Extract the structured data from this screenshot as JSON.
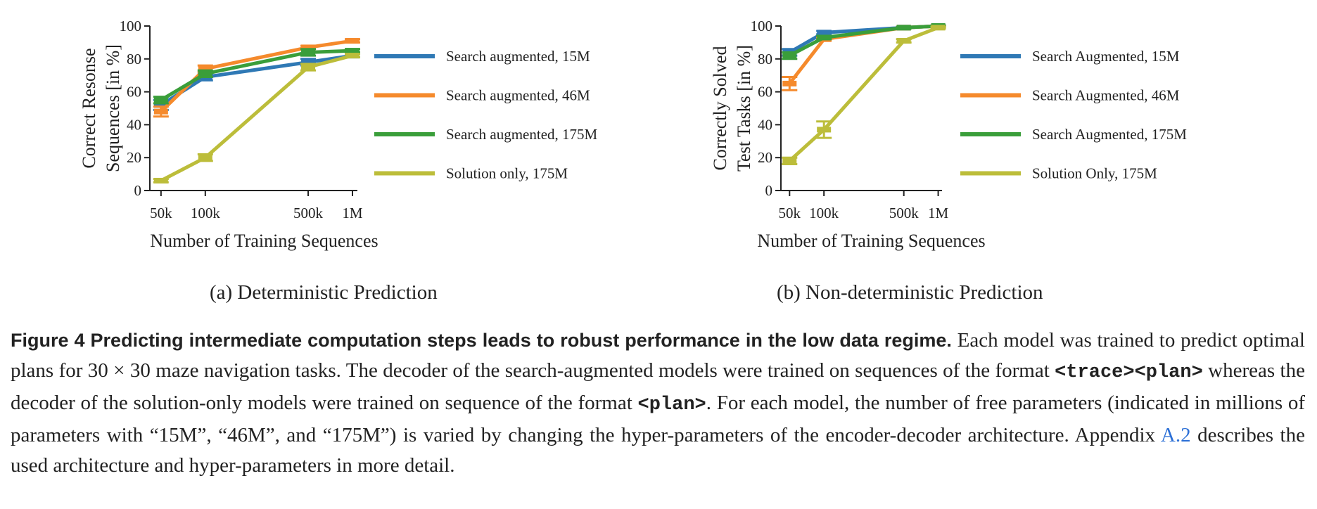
{
  "chart_data": [
    {
      "type": "line",
      "sublabel": "(a) Deterministic Prediction",
      "xlabel": "Number of Training Sequences",
      "ylabel": [
        "Correct Resonse",
        "Sequences [in %]"
      ],
      "ylim": [
        0,
        100
      ],
      "yticks": [
        0,
        20,
        40,
        60,
        80,
        100
      ],
      "x": [
        50000,
        100000,
        500000,
        1000000
      ],
      "xticklabels": [
        "50k",
        "100k",
        "500k",
        "1M"
      ],
      "xscale": "log",
      "grid": false,
      "legend_placement": "right",
      "series": [
        {
          "name": "Search augmented, 15M",
          "color": "#2f79b5",
          "values": [
            52,
            69,
            78,
            82
          ],
          "err": [
            3,
            2,
            2,
            1
          ]
        },
        {
          "name": "Search augmented, 46M",
          "color": "#f58a2c",
          "values": [
            48,
            74,
            87,
            91
          ],
          "err": [
            3,
            2,
            1,
            1
          ]
        },
        {
          "name": "Search augmented, 175M",
          "color": "#3a9e3a",
          "values": [
            55,
            71,
            84,
            85
          ],
          "err": [
            2,
            2,
            2,
            1
          ]
        },
        {
          "name": "Solution only, 175M",
          "color": "#bcbd3a",
          "values": [
            6,
            20,
            75,
            82
          ],
          "err": [
            1,
            2,
            2,
            1
          ]
        }
      ]
    },
    {
      "type": "line",
      "sublabel": "(b) Non-deterministic Prediction",
      "xlabel": "Number of Training Sequences",
      "ylabel": [
        "Correctly Solved",
        "Test Tasks [in %]"
      ],
      "ylim": [
        0,
        100
      ],
      "yticks": [
        0,
        20,
        40,
        60,
        80,
        100
      ],
      "x": [
        50000,
        100000,
        500000,
        1000000
      ],
      "xticklabels": [
        "50k",
        "100k",
        "500k",
        "1M"
      ],
      "xscale": "log",
      "grid": false,
      "legend_placement": "right",
      "series": [
        {
          "name": "Search Augmented, 15M",
          "color": "#2f79b5",
          "values": [
            84,
            96,
            99,
            100
          ],
          "err": [
            2,
            1,
            0.5,
            0.3
          ]
        },
        {
          "name": "Search Augmented, 46M",
          "color": "#f58a2c",
          "values": [
            65,
            92,
            99,
            100
          ],
          "err": [
            4,
            1,
            0.5,
            0.3
          ]
        },
        {
          "name": "Search Augmented, 175M",
          "color": "#3a9e3a",
          "values": [
            82,
            93,
            99,
            100
          ],
          "err": [
            2,
            1,
            0.5,
            0.3
          ]
        },
        {
          "name": "Solution Only, 175M",
          "color": "#bcbd3a",
          "values": [
            18,
            37,
            91,
            99
          ],
          "err": [
            2,
            5,
            1,
            0.5
          ]
        }
      ]
    }
  ],
  "caption": {
    "figure_head": "Figure 4  Predicting intermediate computation steps leads to robust performance in the low data regime.",
    "text_1": " Each model was trained to predict optimal plans for 30 × 30 maze navigation tasks. The decoder of the search-augmented models were trained on sequences of the format ",
    "code_1": "<trace><plan>",
    "text_2": " whereas the decoder of the solution-only models were trained on sequence of the format ",
    "code_2": "<plan>",
    "text_3": ". For each model, the number of free parameters (indicated in millions of parameters with “15M”, “46M”, and “175M”) is varied by changing the hyper-parameters of the encoder-decoder architecture. Appendix ",
    "link": "A.2",
    "text_4": " describes the used architecture and hyper-parameters in more detail."
  }
}
